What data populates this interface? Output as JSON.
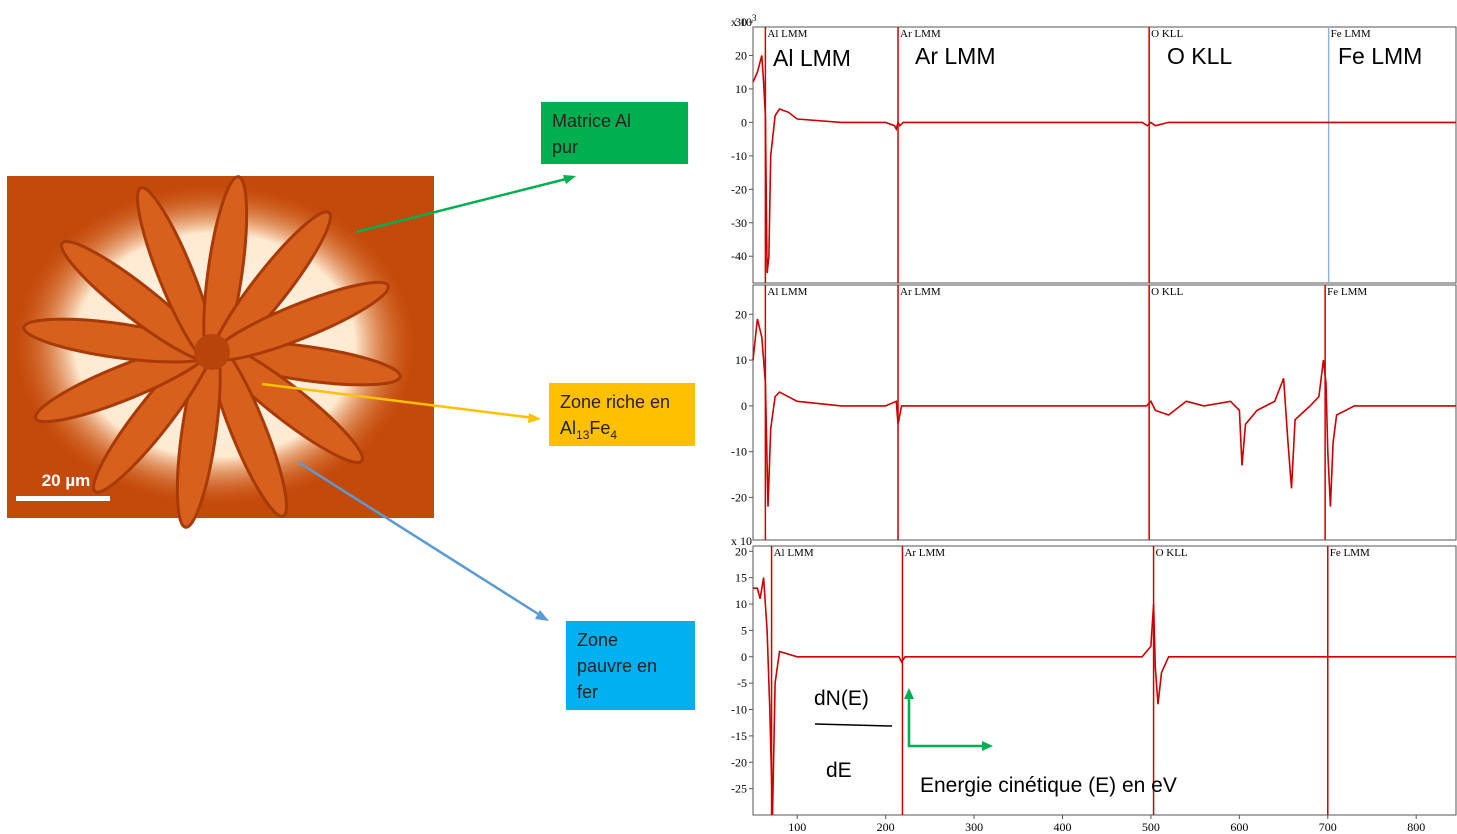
{
  "image": {
    "scale_bar": "20 µm"
  },
  "labels": [
    {
      "lines": [
        "Matrice Al",
        "pur"
      ],
      "color": "#00b050"
    },
    {
      "lines": [
        "Zone riche en"
      ],
      "formula": [
        "Al",
        "13",
        "Fe",
        "4"
      ],
      "color": "#ffc000"
    },
    {
      "lines": [
        "Zone",
        "pauvre en",
        "fer"
      ],
      "color": "#00b0f0"
    }
  ],
  "chart_data": [
    {
      "type": "line",
      "multiplier": {
        "base": "x 10",
        "exp": "3"
      },
      "xlim": [
        50,
        845
      ],
      "ylim": [
        -48,
        28.5
      ],
      "yticks": [
        30,
        20,
        10,
        0,
        -10,
        -20,
        -30,
        -40
      ],
      "markers": [
        {
          "label": "Al LMM",
          "x": 64,
          "color": "#cc0000"
        },
        {
          "label": "Ar LMM",
          "x": 214,
          "color": "#cc0000"
        },
        {
          "label": "O KLL",
          "x": 498,
          "color": "#cc0000"
        },
        {
          "label": "Fe LMM",
          "x": 701,
          "color": "#8fb4d9"
        }
      ],
      "annotations": [
        "Al LMM",
        "Ar LMM",
        "O KLL",
        "Fe LMM"
      ],
      "x": [
        50,
        55,
        60,
        62,
        64,
        66,
        68,
        70,
        75,
        80,
        90,
        100,
        150,
        200,
        210,
        212,
        214,
        216,
        220,
        300,
        400,
        490,
        496,
        500,
        505,
        520,
        600,
        700,
        845
      ],
      "series": [
        {
          "color": "#cc0000",
          "values": [
            12,
            15,
            20,
            12,
            2,
            -45,
            -40,
            -10,
            2,
            4,
            3,
            1,
            0,
            0,
            -1,
            -2,
            0,
            -1,
            0,
            0,
            0,
            0,
            -1,
            0,
            -1,
            0,
            0,
            0,
            0
          ]
        }
      ]
    },
    {
      "type": "line",
      "xlim": [
        50,
        845
      ],
      "ylim": [
        -29.3,
        26.4
      ],
      "yticks": [
        20,
        10,
        0,
        -10,
        -20
      ],
      "markers": [
        {
          "label": "Al LMM",
          "x": 64,
          "color": "#cc0000"
        },
        {
          "label": "Ar LMM",
          "x": 214,
          "color": "#cc0000"
        },
        {
          "label": "O KLL",
          "x": 498,
          "color": "#cc0000"
        },
        {
          "label": "Fe LMM",
          "x": 697,
          "color": "#cc0000"
        }
      ],
      "x": [
        50,
        55,
        60,
        64,
        67,
        70,
        75,
        80,
        100,
        150,
        200,
        212,
        214,
        218,
        400,
        495,
        500,
        505,
        520,
        540,
        560,
        590,
        600,
        603,
        607,
        620,
        640,
        650,
        655,
        659,
        663,
        680,
        690,
        695,
        698,
        700,
        703,
        706,
        710,
        730,
        845
      ],
      "series": [
        {
          "color": "#cc0000",
          "values": [
            10,
            19,
            15,
            5,
            -22,
            -5,
            2,
            3,
            1,
            0,
            0,
            1,
            -4,
            0,
            0,
            0,
            1,
            -1,
            -2,
            1,
            0,
            1,
            -1,
            -13,
            -4,
            -1,
            1,
            6,
            -8,
            -18,
            -3,
            0,
            2,
            10,
            5,
            -10,
            -22,
            -8,
            -2,
            0,
            0
          ]
        }
      ]
    },
    {
      "type": "line",
      "multiplier": {
        "base": "x 10"
      },
      "xlim": [
        50,
        845
      ],
      "ylim": [
        -30,
        21
      ],
      "yticks": [
        20,
        15,
        10,
        5,
        0,
        -5,
        -10,
        -15,
        -20,
        -25
      ],
      "xticks": [
        100,
        200,
        300,
        400,
        500,
        600,
        700,
        800
      ],
      "markers": [
        {
          "label": "Al LMM",
          "x": 71,
          "color": "#cc0000"
        },
        {
          "label": "Ar LMM",
          "x": 219,
          "color": "#cc0000"
        },
        {
          "label": "O KLL",
          "x": 503,
          "color": "#cc0000"
        },
        {
          "label": "Fe LMM",
          "x": 700,
          "color": "#cc0000"
        }
      ],
      "annotations": [
        "dN(E)",
        "dE",
        "Energie cinétique (E) en eV"
      ],
      "x": [
        50,
        55,
        58,
        62,
        66,
        69,
        72,
        75,
        80,
        100,
        150,
        200,
        215,
        218,
        222,
        490,
        495,
        500,
        503,
        505,
        508,
        512,
        520,
        845
      ],
      "series": [
        {
          "color": "#cc0000",
          "values": [
            13,
            13,
            11,
            15,
            5,
            -10,
            -30,
            -5,
            1,
            0,
            0,
            0,
            0,
            -1,
            0,
            0,
            1,
            2,
            10,
            -2,
            -9,
            -3,
            0,
            0
          ]
        }
      ]
    }
  ]
}
